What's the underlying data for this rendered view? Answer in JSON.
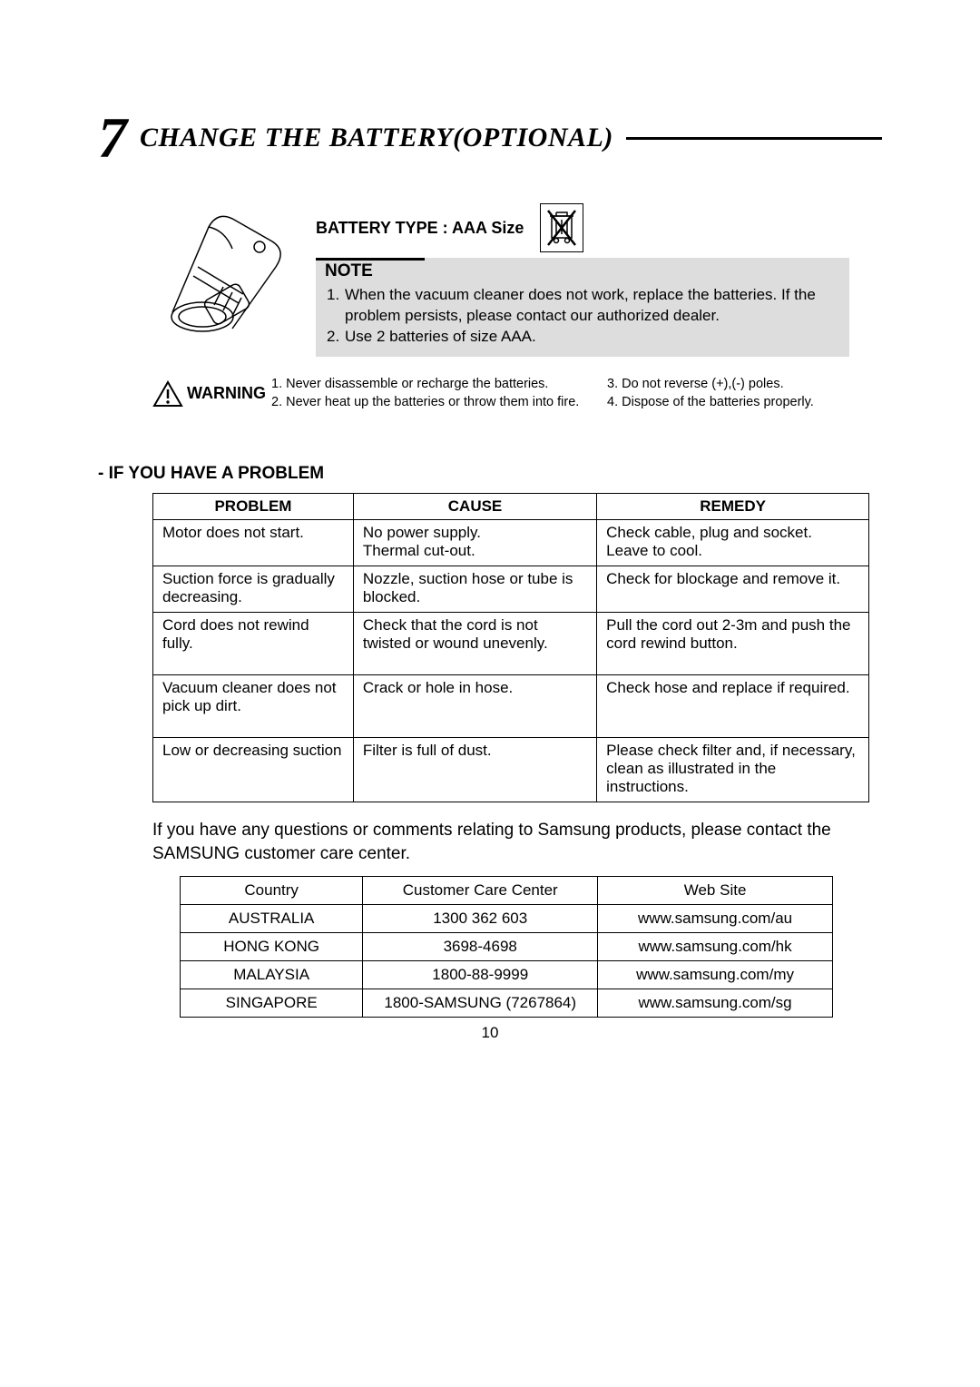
{
  "section": {
    "number": "7",
    "title": "CHANGE THE BATTERY(OPTIONAL)"
  },
  "battery_type": "BATTERY TYPE : AAA Size",
  "note": {
    "heading": "NOTE",
    "items": [
      {
        "n": "1.",
        "text": "When the vacuum cleaner does not work, replace the batteries. If the problem persists, please contact our authorized dealer."
      },
      {
        "n": "2.",
        "text": "Use 2 batteries of size AAA."
      }
    ]
  },
  "warning": {
    "label": "WARNING",
    "col1": [
      "1. Never disassemble or recharge the batteries.",
      "2. Never heat up the batteries or throw them into fire."
    ],
    "col2": [
      "3. Do not reverse (+),(-) poles.",
      "4. Dispose of the batteries properly."
    ]
  },
  "problem_section_title": "- IF YOU HAVE A PROBLEM",
  "problem_table": {
    "columns": [
      "PROBLEM",
      "CAUSE",
      "REMEDY"
    ],
    "col_widths": [
      "28%",
      "34%",
      "38%"
    ],
    "rows": [
      {
        "short": true,
        "cells": [
          "Motor does not start.",
          "No power supply.\nThermal cut-out.",
          "Check cable, plug and socket.\nLeave to cool."
        ]
      },
      {
        "short": true,
        "cells": [
          "Suction force is gradually decreasing.",
          "Nozzle, suction hose or tube is blocked.",
          "Check for blockage and remove it."
        ]
      },
      {
        "short": false,
        "cells": [
          "Cord does not rewind fully.",
          "Check that the cord is not twisted or wound unevenly.",
          "Pull the cord out 2-3m and push the cord rewind button."
        ]
      },
      {
        "short": false,
        "cells": [
          "Vacuum cleaner does not pick up dirt.",
          "Crack or hole in hose.",
          "Check hose and replace if required."
        ]
      },
      {
        "short": true,
        "cells": [
          "Low or decreasing suction",
          "Filter is  full of dust.",
          "Please check filter and, if necessary, clean as illustrat­ed in the instructions."
        ]
      }
    ]
  },
  "contact_note": "If you have any questions or comments relating to Samsung products, please contact the SAMSUNG customer care center.",
  "contact_table": {
    "columns": [
      "Country",
      "Customer Care Center",
      "Web Site"
    ],
    "col_widths": [
      "28%",
      "36%",
      "36%"
    ],
    "rows": [
      [
        "AUSTRALIA",
        "1300 362 603",
        "www.samsung.com/au"
      ],
      [
        "HONG KONG",
        "3698-4698",
        "www.samsung.com/hk"
      ],
      [
        "MALAYSIA",
        "1800-88-9999",
        "www.samsung.com/my"
      ],
      [
        "SINGAPORE",
        "1800-SAMSUNG (7267864)",
        "www.samsung.com/sg"
      ]
    ]
  },
  "page_number": "10",
  "colors": {
    "text": "#000000",
    "bg": "#ffffff",
    "note_bg": "#dddddd",
    "border": "#000000"
  }
}
